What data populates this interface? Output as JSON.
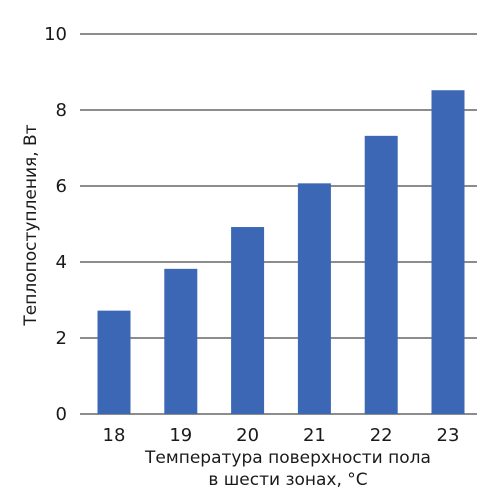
{
  "chart_data": {
    "type": "bar",
    "categories": [
      "18",
      "19",
      "20",
      "21",
      "22",
      "23"
    ],
    "values": [
      2.72,
      3.82,
      4.92,
      6.07,
      7.32,
      8.52
    ],
    "ylim": [
      0,
      10
    ],
    "yticks": [
      "0",
      "2",
      "4",
      "6",
      "8",
      "10"
    ],
    "ylabel": "Теплопоступления, Вт",
    "xlabel_line1": "Температура поверхности пола",
    "xlabel_line2": "в шести зонах, °С",
    "bar_color": "#3b67b5",
    "grid": true
  }
}
